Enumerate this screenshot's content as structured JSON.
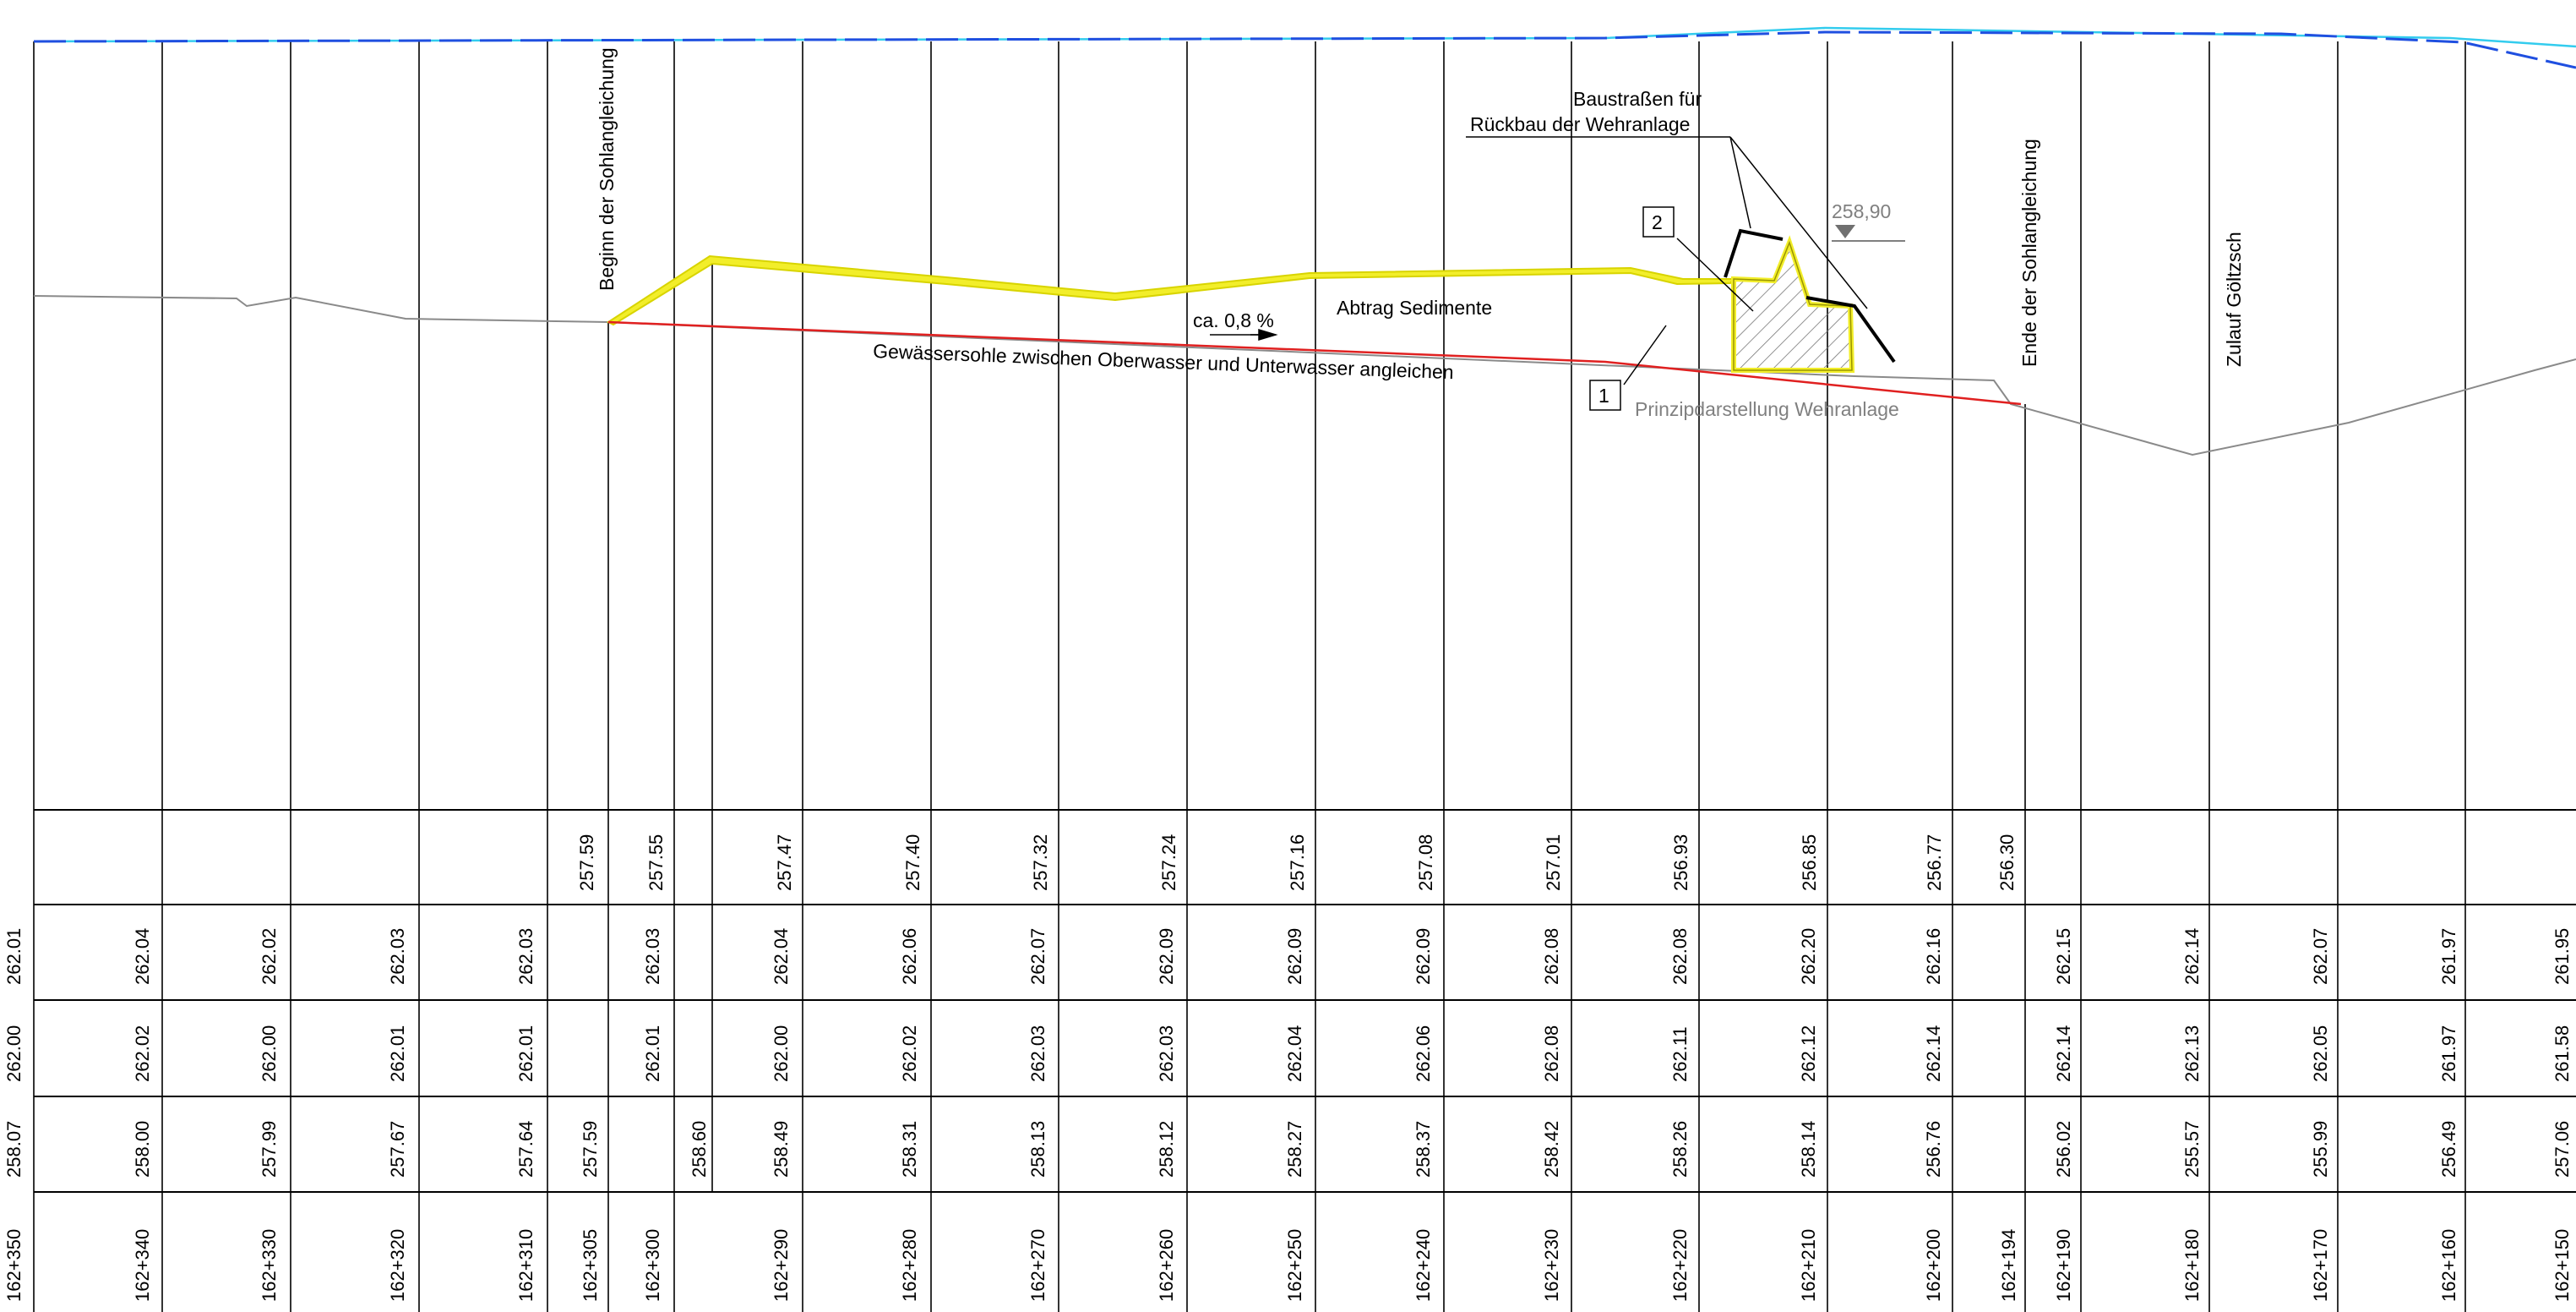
{
  "stations": [
    "162+350",
    "162+340",
    "162+330",
    "162+320",
    "162+310",
    "162+305",
    "162+300",
    "162+290",
    "162+280",
    "162+270",
    "162+260",
    "162+250",
    "162+240",
    "162+230",
    "162+220",
    "162+210",
    "162+200",
    "162+194",
    "162+190",
    "162+180",
    "162+170",
    "162+160",
    "162+150"
  ],
  "row_design": [
    "",
    "",
    "",
    "",
    "",
    "257.59",
    "257.55",
    "257.47",
    "257.40",
    "257.32",
    "257.24",
    "257.16",
    "257.08",
    "257.01",
    "256.93",
    "256.85",
    "256.77",
    "256.30",
    "",
    "",
    "",
    "",
    ""
  ],
  "row_a": [
    "262.01",
    "262.04",
    "262.02",
    "262.03",
    "262.03",
    "",
    "262.03",
    "262.04",
    "262.06",
    "262.07",
    "262.09",
    "262.09",
    "262.09",
    "262.08",
    "262.08",
    "262.20",
    "262.16",
    "",
    "262.15",
    "262.14",
    "262.07",
    "261.97",
    "261.95"
  ],
  "row_b": [
    "262.00",
    "262.02",
    "262.00",
    "262.01",
    "262.01",
    "",
    "262.01",
    "262.00",
    "262.02",
    "262.03",
    "262.03",
    "262.04",
    "262.06",
    "262.08",
    "262.11",
    "262.12",
    "262.14",
    "",
    "262.14",
    "262.13",
    "262.05",
    "261.97",
    "261.58"
  ],
  "row_c": [
    "258.07",
    "258.00",
    "257.99",
    "257.67",
    "257.64",
    "257.59",
    "",
    "258.49",
    "258.31",
    "258.13",
    "258.12",
    "258.27",
    "258.37",
    "258.42",
    "258.26",
    "258.14",
    "256.76",
    "",
    "256.02",
    "255.57",
    "255.99",
    "256.49",
    "257.06"
  ],
  "extra_value": "258.60",
  "labels": {
    "beginn": "Beginn der Sohlangleichung",
    "ende": "Ende der Sohlangleichung",
    "zulauf": "Zulauf Göltzsch",
    "baustrassen_1": "Baustraßen für",
    "baustrassen_2": "Rückbau der Wehranlage",
    "level": "258,90",
    "slope": "ca. 0,8 %",
    "abtrag": "Abtrag Sedimente",
    "gewaesser": "Gewässersohle zwischen Oberwasser und Unterwasser angleichen",
    "prinzip": "Prinzipdarstellung Wehranlage",
    "marker_1": "1",
    "marker_2": "2"
  },
  "colors": {
    "water_line": "#1F4FE0",
    "water_line_light": "#33CCEE",
    "new_bed": "#E02020",
    "sediment_fill": "#F2EE2A",
    "terrain": "#8A8A8A",
    "annotation_gray": "#808080"
  }
}
